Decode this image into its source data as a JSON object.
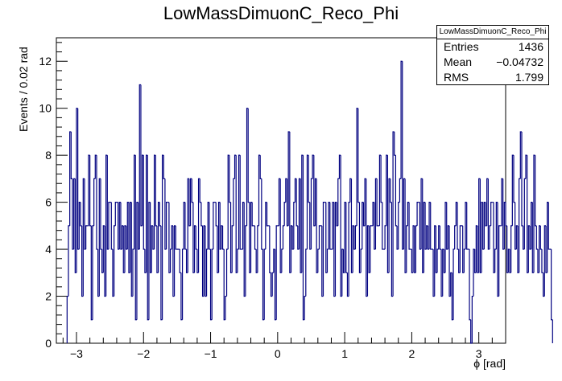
{
  "chart_data": {
    "type": "bar",
    "style": "step-histogram",
    "title": "LowMassDimuonC_Reco_Phi",
    "xlabel": "ϕ [rad]",
    "ylabel": "Events / 0.02 rad",
    "xlim": [
      -3.3,
      3.4
    ],
    "ylim": [
      0,
      13
    ],
    "bin_width": 0.02,
    "x_ticks": [
      -3,
      -2,
      -1,
      0,
      1,
      2,
      3
    ],
    "y_ticks": [
      0,
      2,
      4,
      6,
      8,
      10,
      12
    ],
    "x_tick_labels": [
      "−3",
      "−2",
      "−1",
      "0",
      "1",
      "2",
      "3"
    ],
    "y_tick_labels": [
      "0",
      "2",
      "4",
      "6",
      "8",
      "10",
      "12"
    ],
    "line_color": "#000080",
    "x_start": -3.14,
    "values": [
      2,
      5,
      9,
      7,
      4,
      7,
      3,
      10,
      4,
      6,
      5,
      2,
      7,
      4,
      5,
      5,
      8,
      5,
      1,
      5,
      7,
      8,
      4,
      2,
      7,
      4,
      3,
      5,
      2,
      8,
      4,
      6,
      6,
      4,
      2,
      5,
      6,
      6,
      4,
      6,
      4,
      5,
      3,
      5,
      4,
      6,
      3,
      6,
      2,
      4,
      8,
      1,
      6,
      4,
      11,
      5,
      8,
      4,
      3,
      8,
      1,
      6,
      3,
      5,
      4,
      8,
      5,
      3,
      6,
      5,
      1,
      8,
      7,
      4,
      6,
      6,
      3,
      4,
      5,
      2,
      5,
      4,
      4,
      4,
      3,
      1,
      4,
      6,
      4,
      3,
      7,
      5,
      7,
      6,
      3,
      5,
      4,
      3,
      7,
      6,
      5,
      2,
      5,
      2,
      4,
      6,
      4,
      1,
      4,
      6,
      6,
      5,
      3,
      6,
      4,
      5,
      4,
      1,
      2,
      4,
      8,
      6,
      3,
      5,
      7,
      8,
      3,
      4,
      8,
      4,
      4,
      6,
      2,
      5,
      10,
      6,
      3,
      6,
      5,
      5,
      4,
      3,
      5,
      8,
      7,
      4,
      1,
      4,
      6,
      5,
      5,
      3,
      2,
      3,
      4,
      1,
      5,
      5,
      7,
      3,
      4,
      5,
      6,
      7,
      5,
      9,
      3,
      5,
      4,
      6,
      7,
      5,
      4,
      7,
      3,
      8,
      1,
      2,
      4,
      8,
      6,
      4,
      7,
      8,
      5,
      7,
      3,
      4,
      5,
      5,
      2,
      6,
      6,
      3,
      4,
      6,
      4,
      4,
      6,
      2,
      6,
      5,
      7,
      8,
      2,
      4,
      3,
      6,
      3,
      2,
      6,
      7,
      3,
      5,
      4,
      5,
      10,
      6,
      3,
      4,
      6,
      5,
      7,
      2,
      5,
      3,
      5,
      5,
      6,
      4,
      7,
      5,
      5,
      8,
      6,
      4,
      4,
      5,
      8,
      3,
      7,
      6,
      2,
      9,
      8,
      5,
      4,
      6,
      7,
      12,
      4,
      7,
      3,
      5,
      6,
      4,
      4,
      3,
      5,
      3,
      5,
      6,
      6,
      4,
      7,
      3,
      6,
      4,
      5,
      4,
      6,
      4,
      4,
      2,
      5,
      3,
      4,
      5,
      4,
      2,
      4,
      3,
      6,
      4,
      5,
      2,
      3,
      1,
      4,
      5,
      6,
      4,
      3,
      5,
      5,
      3,
      4,
      6,
      4,
      4,
      1,
      0,
      2,
      4,
      3,
      5,
      3,
      7,
      3,
      6,
      4,
      6,
      5,
      7,
      4,
      5,
      6,
      6,
      3,
      4,
      6,
      2,
      5,
      5,
      7,
      4,
      6,
      5,
      3,
      4,
      3,
      5,
      8,
      6,
      4,
      5,
      3,
      7,
      9,
      5,
      4,
      7,
      8,
      3,
      5,
      4,
      6,
      3,
      8,
      5,
      4,
      3,
      5,
      4,
      3,
      2,
      5,
      3,
      6,
      4,
      4,
      1
    ]
  },
  "stats": {
    "title": "LowMassDimuonC_Reco_Phi",
    "rows": [
      {
        "label": "Entries",
        "value": "1436"
      },
      {
        "label": "Mean",
        "value": "−0.04732"
      },
      {
        "label": "RMS",
        "value": "1.799"
      }
    ]
  }
}
